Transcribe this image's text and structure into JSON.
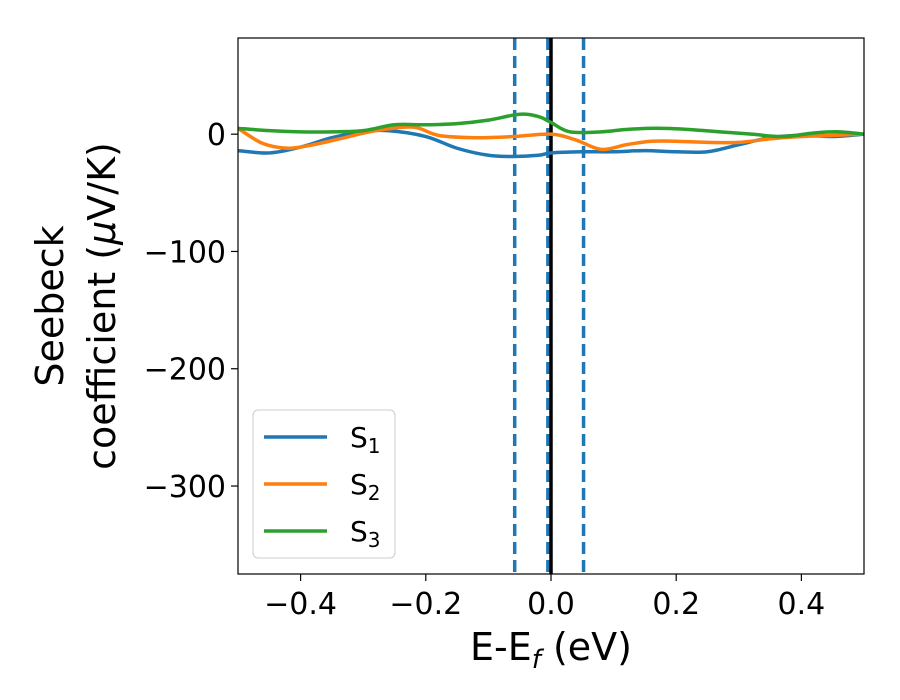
{
  "chart_data": {
    "type": "line",
    "xlabel_main": "E-E",
    "xlabel_sub": "f",
    "xlabel_unit": " (eV)",
    "ylabel_line1": "Seebeck",
    "ylabel_line2_a": "coefficient  (",
    "ylabel_line2_mu": "μ",
    "ylabel_line2_b": "V/K)",
    "xlim": [
      -0.5,
      0.5
    ],
    "ylim": [
      -375,
      82
    ],
    "xticks": [
      -0.4,
      -0.2,
      0.0,
      0.2,
      0.4
    ],
    "xtick_labels": [
      "−0.4",
      "−0.2",
      "0.0",
      "0.2",
      "0.4"
    ],
    "yticks": [
      0,
      -100,
      -200,
      -300
    ],
    "ytick_labels": [
      "0",
      "−100",
      "−200",
      "−300"
    ],
    "grid": false,
    "legend_position": "lower-left",
    "vlines": [
      {
        "x": -0.058,
        "style": "dashed",
        "color": "#1f77b4"
      },
      {
        "x": -0.005,
        "style": "dashed",
        "color": "#1f77b4"
      },
      {
        "x": 0.0,
        "style": "solid",
        "color": "#000000"
      },
      {
        "x": 0.052,
        "style": "dashed",
        "color": "#1f77b4"
      }
    ],
    "series": [
      {
        "name": "S",
        "subscript": "1",
        "color": "#1f77b4",
        "x": [
          -0.5,
          -0.45,
          -0.4,
          -0.35,
          -0.3,
          -0.26,
          -0.2,
          -0.15,
          -0.1,
          -0.06,
          -0.02,
          0.0,
          0.05,
          0.1,
          0.15,
          0.2,
          0.25,
          0.3,
          0.35,
          0.4,
          0.45,
          0.5
        ],
        "y": [
          -14,
          -16,
          -11,
          -3,
          2,
          3,
          -2,
          -12,
          -18,
          -19,
          -18,
          -16,
          -15,
          -15,
          -14,
          -15,
          -15,
          -9,
          -3,
          -1,
          -2,
          0
        ]
      },
      {
        "name": "S",
        "subscript": "2",
        "color": "#ff7f0e",
        "x": [
          -0.5,
          -0.46,
          -0.42,
          -0.38,
          -0.33,
          -0.28,
          -0.22,
          -0.18,
          -0.12,
          -0.06,
          0.0,
          0.04,
          0.08,
          0.12,
          0.16,
          0.2,
          0.25,
          0.3,
          0.35,
          0.4,
          0.45,
          0.5
        ],
        "y": [
          5,
          -8,
          -12,
          -9,
          -3,
          3,
          6,
          -1,
          -3,
          -2,
          0,
          -5,
          -13,
          -9,
          -6,
          -6,
          -7,
          -7,
          -4,
          -2,
          -1,
          0
        ]
      },
      {
        "name": "S",
        "subscript": "3",
        "color": "#2ca02c",
        "x": [
          -0.5,
          -0.45,
          -0.4,
          -0.35,
          -0.3,
          -0.25,
          -0.2,
          -0.15,
          -0.1,
          -0.05,
          -0.02,
          0.0,
          0.03,
          0.08,
          0.12,
          0.17,
          0.22,
          0.27,
          0.32,
          0.37,
          0.42,
          0.46,
          0.5
        ],
        "y": [
          5,
          3,
          2,
          2,
          3,
          8,
          8,
          9,
          12,
          17,
          15,
          10,
          2,
          2,
          4,
          5,
          4,
          2,
          0,
          -2,
          1,
          2,
          0
        ]
      }
    ]
  }
}
